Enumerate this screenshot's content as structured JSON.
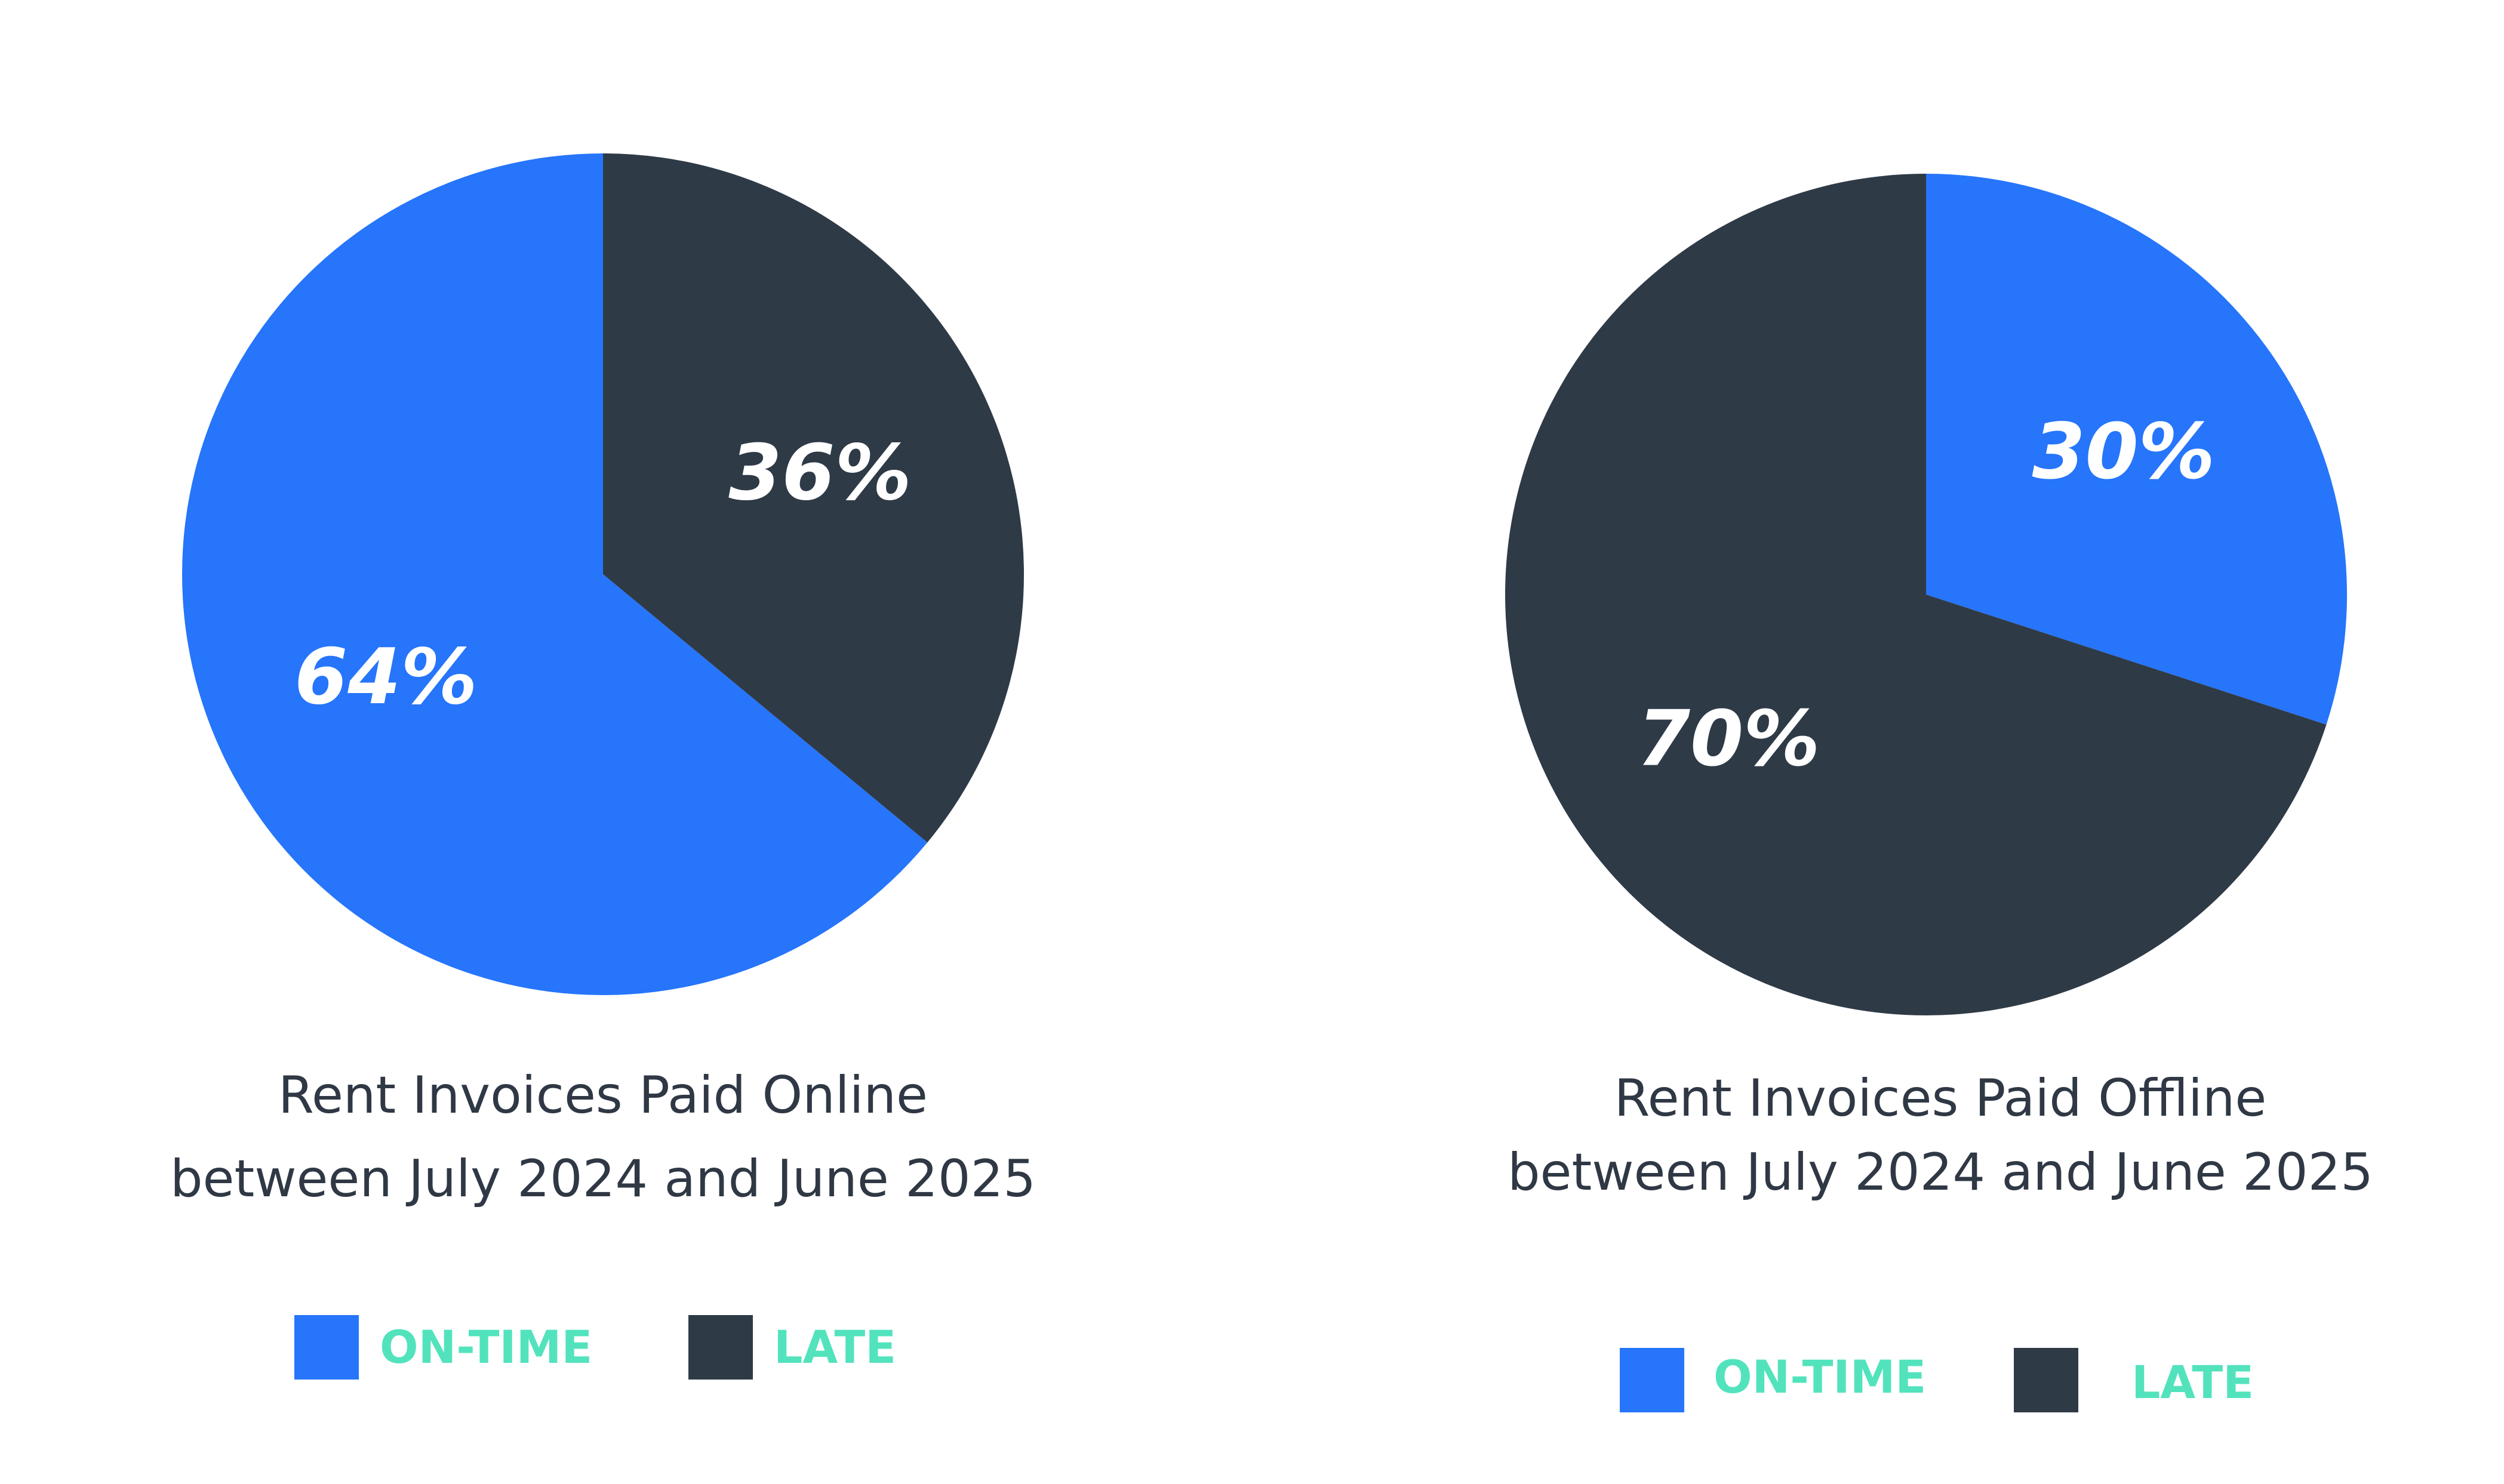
{
  "colors": {
    "on_time": "#2675fb",
    "late": "#2f3a47",
    "legend_text": "#52e3bd",
    "title_text": "#2f3844",
    "label_text": "#ffffff"
  },
  "chart_data": [
    {
      "type": "pie",
      "title_line1": "Rent Invoices Paid Online",
      "title_line2": "between July 2024 and June 2025",
      "slices": [
        {
          "label": "ON-TIME",
          "value": 64,
          "display": "64%"
        },
        {
          "label": "LATE",
          "value": 36,
          "display": "36%"
        }
      ],
      "legend": {
        "items": [
          "ON-TIME",
          "LATE"
        ],
        "placement": "bottom"
      }
    },
    {
      "type": "pie",
      "title_line1": "Rent Invoices Paid Offline",
      "title_line2": "between July 2024 and June 2025",
      "slices": [
        {
          "label": "ON-TIME",
          "value": 30,
          "display": "30%"
        },
        {
          "label": "LATE",
          "value": 70,
          "display": "70%"
        }
      ],
      "legend": {
        "items": [
          "ON-TIME",
          "LATE"
        ],
        "placement": "bottom"
      }
    }
  ]
}
